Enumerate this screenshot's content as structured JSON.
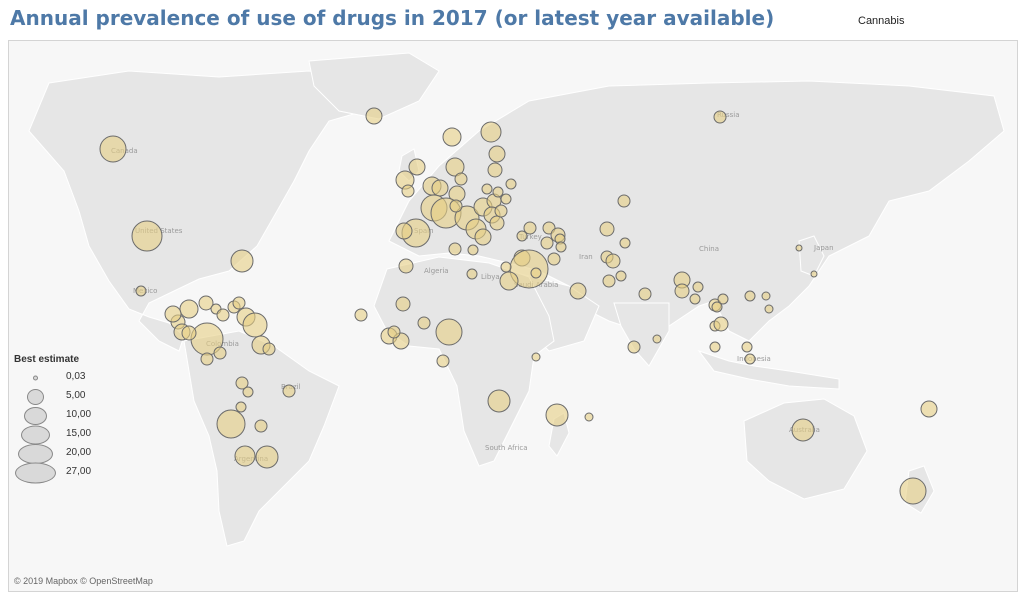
{
  "title": "Annual prevalence of use of drugs in 2017 (or latest year available)",
  "drug_filter": "Cannabis",
  "legend": {
    "title": "Best estimate",
    "values": [
      "0,03",
      "5,00",
      "10,00",
      "15,00",
      "20,00",
      "27,00"
    ]
  },
  "map_labels": [
    "Canada",
    "United States",
    "Mexico",
    "Colombia",
    "Brazil",
    "Argentina",
    "Algeria",
    "Libya",
    "Saudi Arabia",
    "Iran",
    "Turkey",
    "Spain",
    "China",
    "Russia",
    "Japan",
    "Indonesia",
    "Australia",
    "South Africa"
  ],
  "attribution": "© 2019 Mapbox © OpenStreetMap",
  "colors": {
    "title": "#4e79a7",
    "bubble": "#e6cf83",
    "land": "#e6e6e6",
    "water": "#f7f7f7"
  }
}
